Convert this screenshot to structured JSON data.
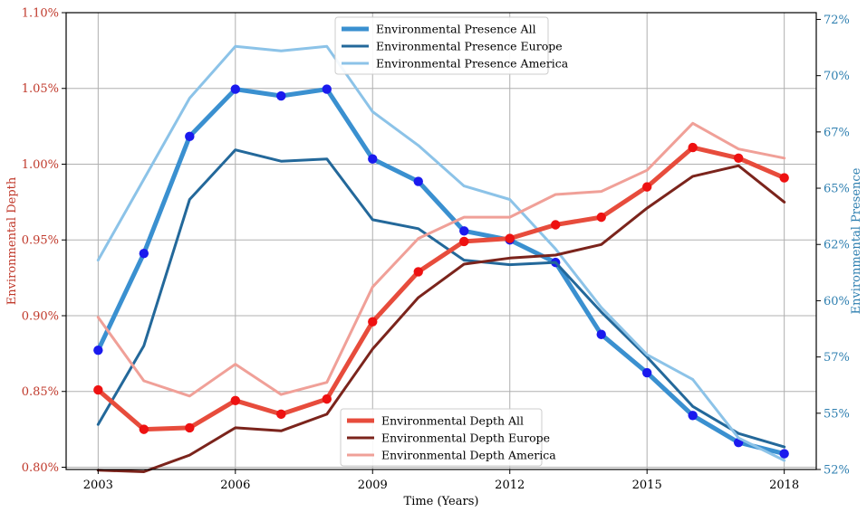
{
  "chart_data": {
    "type": "line",
    "x": [
      2003,
      2004,
      2005,
      2006,
      2007,
      2008,
      2009,
      2010,
      2011,
      2012,
      2013,
      2014,
      2015,
      2016,
      2017,
      2018
    ],
    "xlabel": "Time (Years)",
    "xticks": [
      2003,
      2006,
      2009,
      2012,
      2015,
      2018
    ],
    "xtick_labels": [
      "2003",
      "2006",
      "2009",
      "2012",
      "2015",
      "2018"
    ],
    "xlim": [
      2002.3,
      2018.7
    ],
    "grid": true,
    "left_axis": {
      "label": "Environmental Depth",
      "color": "#c0392b",
      "ylim": [
        0.7985,
        1.1
      ],
      "ticks": [
        0.8,
        0.85,
        0.9,
        0.95,
        1.0,
        1.05,
        1.1
      ],
      "tick_labels": [
        "0.80%",
        "0.85%",
        "0.90%",
        "0.95%",
        "1.00%",
        "1.05%",
        "1.10%"
      ]
    },
    "right_axis": {
      "label": "Environmental Presence",
      "color": "#2e7fb0",
      "ylim": [
        52,
        72.3
      ],
      "ticks": [
        52,
        55,
        57,
        60,
        62,
        65,
        67,
        70,
        72
      ],
      "tick_positions": [
        52,
        54.5,
        57,
        59.5,
        62,
        64.5,
        67,
        69.5,
        72
      ],
      "tick_labels": [
        "52%",
        "55%",
        "57%",
        "60%",
        "62%",
        "65%",
        "67%",
        "70%",
        "72%"
      ]
    },
    "series": [
      {
        "name": "Environmental Presence All",
        "axis": "right",
        "color": "#3a90d0",
        "width": 5,
        "markers": true,
        "values": [
          57.3,
          61.6,
          66.8,
          68.9,
          68.6,
          68.9,
          65.8,
          64.8,
          62.6,
          62.2,
          61.2,
          58.0,
          56.3,
          54.4,
          53.2,
          52.7
        ]
      },
      {
        "name": "Environmental Presence Europe",
        "axis": "right",
        "color": "#23689a",
        "width": 3,
        "markers": false,
        "values": [
          54.0,
          57.5,
          64.0,
          66.2,
          65.7,
          65.8,
          63.1,
          62.7,
          61.3,
          61.1,
          61.2,
          59.0,
          57.0,
          54.8,
          53.6,
          53.0
        ]
      },
      {
        "name": "Environmental Presence America",
        "axis": "right",
        "color": "#8cc3e8",
        "width": 3,
        "markers": false,
        "values": [
          61.3,
          64.9,
          68.5,
          70.8,
          70.6,
          70.8,
          67.9,
          66.4,
          64.6,
          64.0,
          61.8,
          59.2,
          57.1,
          56.0,
          53.4,
          52.4
        ]
      },
      {
        "name": "Environmental Depth All",
        "axis": "left",
        "color": "#e74c3c",
        "width": 5,
        "markers": true,
        "values": [
          0.851,
          0.825,
          0.826,
          0.844,
          0.835,
          0.845,
          0.896,
          0.929,
          0.949,
          0.951,
          0.96,
          0.965,
          0.985,
          1.011,
          1.004,
          0.991
        ]
      },
      {
        "name": "Environmental Depth Europe",
        "axis": "left",
        "color": "#7b241c",
        "width": 3,
        "markers": false,
        "values": [
          0.798,
          0.797,
          0.808,
          0.826,
          0.824,
          0.835,
          0.878,
          0.912,
          0.934,
          0.938,
          0.94,
          0.947,
          0.971,
          0.992,
          0.999,
          0.975
        ]
      },
      {
        "name": "Environmental Depth America",
        "axis": "left",
        "color": "#f0a098",
        "width": 3,
        "markers": false,
        "values": [
          0.899,
          0.857,
          0.847,
          0.868,
          0.848,
          0.856,
          0.919,
          0.951,
          0.965,
          0.965,
          0.98,
          0.982,
          0.996,
          1.027,
          1.01,
          1.004
        ]
      }
    ],
    "legends": [
      {
        "placement": "top-center",
        "entries": [
          "Environmental Presence All",
          "Environmental Presence Europe",
          "Environmental Presence America"
        ]
      },
      {
        "placement": "bottom-center",
        "entries": [
          "Environmental Depth All",
          "Environmental Depth Europe",
          "Environmental Depth America"
        ]
      }
    ]
  }
}
